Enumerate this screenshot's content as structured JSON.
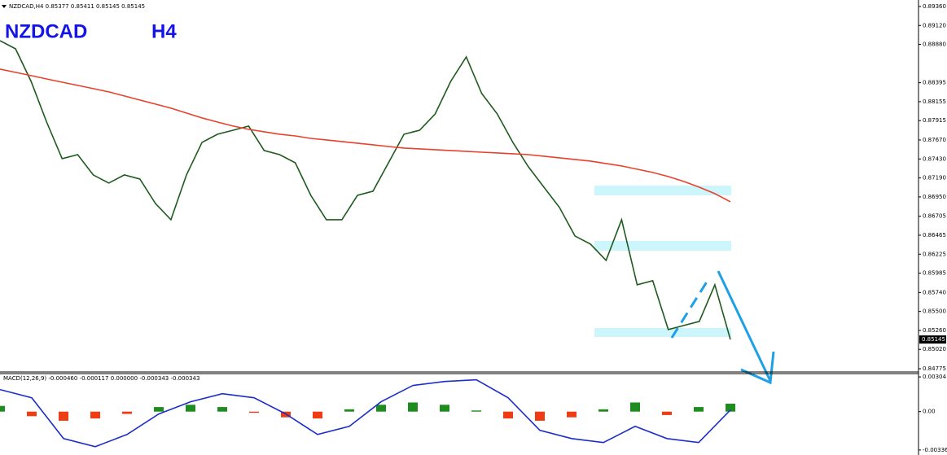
{
  "chart_data": [
    {
      "type": "line",
      "title": "NZDCAD,H4  0.85377 0.85411 0.85145 0.85145",
      "annotations": [
        "NZDCAD",
        "H4"
      ],
      "last_price": {
        "value": 0.85145,
        "label": "0.85145"
      },
      "ylim": [
        0.89442,
        0.84734
      ],
      "yticks": [
        {
          "value": 0.8936,
          "label": "0.89360"
        },
        {
          "value": 0.8912,
          "label": "0.89120"
        },
        {
          "value": 0.8888,
          "label": "0.88880"
        },
        0.88395,
        0.88155,
        0.87915,
        {
          "value": 0.8767,
          "label": "0.87670"
        },
        {
          "value": 0.8743,
          "label": "0.87430"
        },
        {
          "value": 0.8719,
          "label": "0.87190"
        },
        {
          "value": 0.8695,
          "label": "0.86950"
        },
        0.86705,
        0.86465,
        0.86225,
        0.85985,
        {
          "value": 0.8574,
          "label": "0.85740"
        },
        {
          "value": 0.855,
          "label": "0.85500"
        },
        {
          "value": 0.8526,
          "label": "0.85260"
        },
        {
          "value": 0.8502,
          "label": "0.85020"
        },
        0.84775
      ],
      "series": [
        {
          "color": "#1e5a1e",
          "values": [
            0.88927,
            0.88824,
            0.88412,
            0.87897,
            0.87434,
            0.87485,
            0.87228,
            0.87125,
            0.87228,
            0.87176,
            0.86867,
            0.86661,
            0.87228,
            0.8764,
            0.87743,
            0.87794,
            0.87846,
            0.87537,
            0.87485,
            0.87382,
            0.8697,
            0.86661,
            0.86661,
            0.8697,
            0.87022,
            0.87382,
            0.87743,
            0.87794,
            0.88,
            0.88412,
            0.88721,
            0.88258,
            0.88,
            0.8764,
            0.87331,
            0.87073,
            0.86816,
            0.86455,
            0.86352,
            0.86146,
            0.86661,
            0.85837,
            0.85889,
            0.85271,
            0.85322,
            0.85374,
            0.85837,
            0.85145
          ]
        },
        {
          "color": "#e8412c",
          "values": [
            0.88567,
            0.88526,
            0.88485,
            0.88443,
            0.88402,
            0.88361,
            0.8832,
            0.88279,
            0.88227,
            0.88176,
            0.88124,
            0.88073,
            0.88011,
            0.87949,
            0.87897,
            0.87846,
            0.87805,
            0.87774,
            0.87743,
            0.87722,
            0.87691,
            0.87671,
            0.8765,
            0.8763,
            0.87609,
            0.87588,
            0.87568,
            0.87558,
            0.87547,
            0.87537,
            0.87527,
            0.87516,
            0.87506,
            0.87496,
            0.87485,
            0.87465,
            0.87444,
            0.87424,
            0.87403,
            0.87372,
            0.87341,
            0.873,
            0.87259,
            0.87207,
            0.87146,
            0.87073,
            0.86991,
            0.86888
          ]
        }
      ]
    },
    {
      "type": "bar",
      "title": "MACD(12,26,9) -0.000460 -0.000117 0.000000 -0.000343 -0.000343",
      "ylim": [
        0.00333,
        -0.0038
      ],
      "yticks": [
        0.00304,
        {
          "value": 0,
          "label": "0.00"
        },
        -0.003365
      ],
      "up_color": "#1e8c1e",
      "down_color": "#f03c14",
      "series": [
        {
          "style": "bar",
          "values": [
            0.0005,
            -0.0004,
            -0.0008,
            -0.0006,
            -0.0002,
            0.0004,
            0.0006,
            0.0004,
            -0.0001,
            -0.0005,
            -0.0006,
            0.0002,
            0.0006,
            0.0008,
            0.0006,
            0.0001,
            -0.0006,
            -0.0008,
            -0.0005,
            0.0002,
            0.0008,
            -0.0003,
            0.0004,
            0.0007
          ]
        },
        {
          "style": "line",
          "color": "#1a2ec8",
          "values": [
            0.00193,
            0.00121,
            -0.00236,
            -0.00307,
            -0.002,
            -0.00021,
            0.00086,
            0.00157,
            0.00121,
            -0.00021,
            -0.002,
            -0.00129,
            0.00086,
            0.00229,
            0.00264,
            0.00279,
            0.00121,
            -0.00164,
            -0.00236,
            -0.00271,
            -0.00129,
            -0.00236,
            -0.00271,
            0.00014
          ]
        }
      ]
    }
  ]
}
